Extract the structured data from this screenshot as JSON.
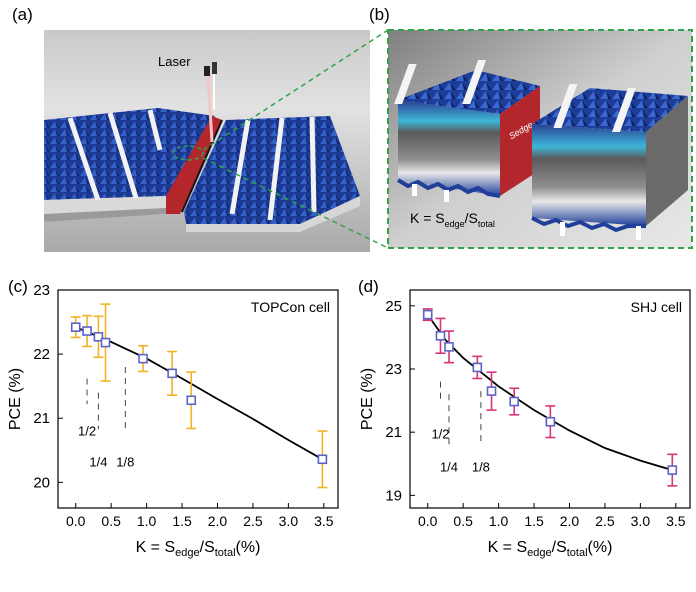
{
  "panels": {
    "a": {
      "label": "(a)",
      "laser_label": "Laser"
    },
    "b": {
      "label": "(b)",
      "edge_label": "Sedge",
      "formula": {
        "k": "K = S",
        "sub1": "edge",
        "slash": "/S",
        "sub2": "total"
      }
    },
    "c": {
      "label": "(c)"
    },
    "d": {
      "label": "(d)"
    }
  },
  "colors": {
    "cell_blue": "#1f3f9a",
    "edge_red": "#b3262c",
    "topcon_err": "#f0b323",
    "shj_err": "#d8337a",
    "marker": "#5b63c6",
    "guide": "#2fa34a"
  },
  "chart_data": [
    {
      "type": "scatter",
      "panel": "c",
      "title": "TOPCon cell",
      "ylabel": "PCE (%)",
      "xlabel": {
        "main": "K = S",
        "sub1": "edge",
        "mid": "/S",
        "sub2": "total",
        "tail": "(%)"
      },
      "xlim": [
        -0.25,
        3.7
      ],
      "ylim": [
        19.6,
        23.0
      ],
      "xticks": [
        0.0,
        0.5,
        1.0,
        1.5,
        2.0,
        2.5,
        3.0,
        3.5
      ],
      "xtick_labels": [
        "0.0",
        "0.5",
        "1.0",
        "1.5",
        "2.0",
        "2.5",
        "3.0",
        "3.5"
      ],
      "yticks": [
        20,
        21,
        22,
        23
      ],
      "ytick_labels": [
        "20",
        "21",
        "22",
        "23"
      ],
      "points": [
        {
          "x": 0.0,
          "y": 22.42,
          "err": 0.16
        },
        {
          "x": 0.16,
          "y": 22.36,
          "err": 0.24
        },
        {
          "x": 0.32,
          "y": 22.27,
          "err": 0.32
        },
        {
          "x": 0.42,
          "y": 22.18,
          "err": 0.6
        },
        {
          "x": 0.95,
          "y": 21.93,
          "err": 0.2
        },
        {
          "x": 1.36,
          "y": 21.7,
          "err": 0.34
        },
        {
          "x": 1.63,
          "y": 21.28,
          "err": 0.44
        },
        {
          "x": 3.48,
          "y": 20.36,
          "err": 0.44
        }
      ],
      "fit": [
        [
          0.0,
          22.42
        ],
        [
          0.5,
          22.19
        ],
        [
          1.0,
          21.93
        ],
        [
          1.5,
          21.62
        ],
        [
          2.0,
          21.3
        ],
        [
          2.5,
          20.99
        ],
        [
          3.0,
          20.66
        ],
        [
          3.48,
          20.36
        ]
      ],
      "annotations": [
        {
          "text": "1/2",
          "x": 0.16,
          "line_top": 21.62,
          "line_bottom": 21.22,
          "text_y": 20.73
        },
        {
          "text": "1/4",
          "x": 0.32,
          "line_top": 21.4,
          "line_bottom": 20.83,
          "text_y": 20.25
        },
        {
          "text": "1/8",
          "x": 0.7,
          "line_top": 21.8,
          "line_bottom": 20.83,
          "text_y": 20.25
        }
      ]
    },
    {
      "type": "scatter",
      "panel": "d",
      "title": "SHJ cell",
      "ylabel": "PCE (%)",
      "xlabel": {
        "main": "K = S",
        "sub1": "edge",
        "mid": "/S",
        "sub2": "total",
        "tail": "(%)"
      },
      "xlim": [
        -0.25,
        3.7
      ],
      "ylim": [
        18.6,
        25.5
      ],
      "xticks": [
        0.0,
        0.5,
        1.0,
        1.5,
        2.0,
        2.5,
        3.0,
        3.5
      ],
      "xtick_labels": [
        "0.0",
        "0.5",
        "1.0",
        "1.5",
        "2.0",
        "2.5",
        "3.0",
        "3.5"
      ],
      "yticks": [
        19,
        21,
        23,
        25
      ],
      "ytick_labels": [
        "19",
        "21",
        "23",
        "25"
      ],
      "points": [
        {
          "x": 0.0,
          "y": 24.72,
          "err": 0.18
        },
        {
          "x": 0.18,
          "y": 24.05,
          "err": 0.55
        },
        {
          "x": 0.3,
          "y": 23.7,
          "err": 0.5
        },
        {
          "x": 0.7,
          "y": 23.05,
          "err": 0.35
        },
        {
          "x": 0.9,
          "y": 22.3,
          "err": 0.6
        },
        {
          "x": 1.22,
          "y": 21.97,
          "err": 0.42
        },
        {
          "x": 1.73,
          "y": 21.33,
          "err": 0.5
        },
        {
          "x": 3.45,
          "y": 19.8,
          "err": 0.5
        }
      ],
      "fit": [
        [
          0.0,
          24.72
        ],
        [
          0.25,
          23.92
        ],
        [
          0.5,
          23.35
        ],
        [
          1.0,
          22.45
        ],
        [
          1.5,
          21.7
        ],
        [
          2.0,
          21.05
        ],
        [
          2.5,
          20.5
        ],
        [
          3.0,
          20.1
        ],
        [
          3.45,
          19.8
        ]
      ],
      "annotations": [
        {
          "text": "1/2",
          "x": 0.18,
          "line_top": 22.6,
          "line_bottom": 21.9,
          "text_y": 20.8
        },
        {
          "text": "1/4",
          "x": 0.3,
          "line_top": 22.2,
          "line_bottom": 20.6,
          "text_y": 19.75
        },
        {
          "text": "1/8",
          "x": 0.75,
          "line_top": 22.3,
          "line_bottom": 20.6,
          "text_y": 19.75
        }
      ]
    }
  ]
}
